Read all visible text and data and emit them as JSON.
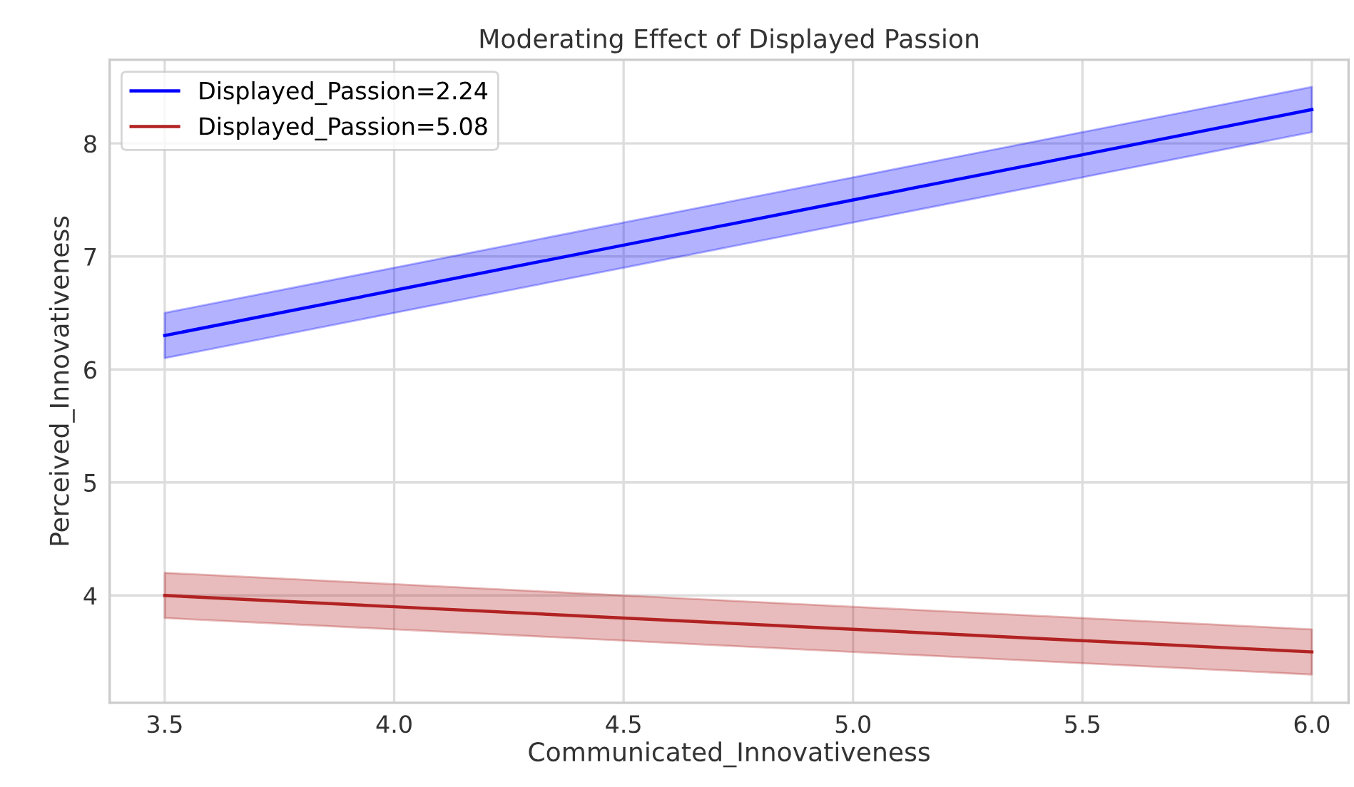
{
  "chart_data": {
    "type": "line",
    "title": "Moderating Effect of Displayed Passion",
    "xlabel": "Communicated_Innovativeness",
    "ylabel": "Perceived_Innovativeness",
    "x": [
      3.5,
      4.0,
      4.5,
      5.0,
      5.5,
      6.0
    ],
    "series": [
      {
        "name": "Displayed_Passion=2.24",
        "color": "#0000ff",
        "values": [
          6.3,
          6.7,
          7.1,
          7.5,
          7.9,
          8.3
        ],
        "lower": [
          6.1,
          6.5,
          6.9,
          7.3,
          7.7,
          8.1
        ],
        "upper": [
          6.5,
          6.9,
          7.3,
          7.7,
          8.1,
          8.5
        ]
      },
      {
        "name": "Displayed_Passion=5.08",
        "color": "#b22222",
        "values": [
          4.0,
          3.9,
          3.8,
          3.7,
          3.6,
          3.5
        ],
        "lower": [
          3.8,
          3.7,
          3.6,
          3.5,
          3.4,
          3.3
        ],
        "upper": [
          4.2,
          4.1,
          4.0,
          3.9,
          3.8,
          3.7
        ]
      }
    ],
    "xlim": [
      3.38,
      6.08
    ],
    "ylim": [
      3.05,
      8.74
    ],
    "xticks": [
      3.5,
      {
        "value": 4,
        "label": "4.0"
      },
      4.5,
      {
        "value": 5,
        "label": "5.0"
      },
      5.5,
      {
        "value": 6,
        "label": "6.0"
      }
    ],
    "yticks": [
      4,
      5,
      6,
      7,
      8
    ],
    "grid": true,
    "legend": "top left",
    "marker": "none",
    "line_style": "solid"
  }
}
